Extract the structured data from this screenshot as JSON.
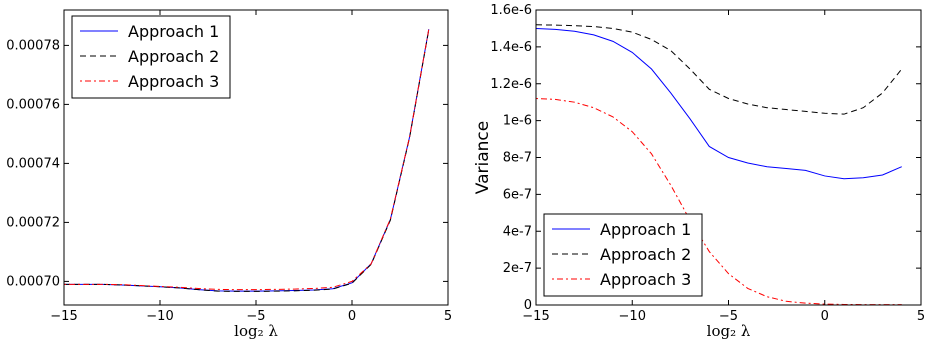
{
  "chart_data": [
    {
      "type": "line",
      "title": "",
      "xlabel": "log₂ λ",
      "ylabel": "",
      "xlim": [
        -15,
        5
      ],
      "ylim": [
        0.000692,
        0.000792
      ],
      "xticks": [
        "−15",
        "−10",
        "−5",
        "0",
        "5"
      ],
      "yticks": [
        "0.00070",
        "0.00072",
        "0.00074",
        "0.00076",
        "0.00078"
      ],
      "legend_position": "top-left",
      "x": [
        -15,
        -14,
        -13,
        -12,
        -11,
        -10,
        -9,
        -8,
        -7,
        -6,
        -5,
        -4,
        -3,
        -2,
        -1,
        0,
        1,
        2,
        3,
        4
      ],
      "series": [
        {
          "name": "Approach 1",
          "color": "#0000ff",
          "style": "solid",
          "values": [
            0.000699,
            0.000699,
            0.000699,
            0.0006988,
            0.0006985,
            0.0006982,
            0.0006978,
            0.0006972,
            0.0006968,
            0.0006967,
            0.0006967,
            0.0006968,
            0.0006969,
            0.0006971,
            0.0006975,
            0.0006995,
            0.000706,
            0.000721,
            0.000749,
            0.0007855
          ]
        },
        {
          "name": "Approach 2",
          "color": "#000000",
          "style": "dashed",
          "values": [
            0.000699,
            0.000699,
            0.000699,
            0.0006988,
            0.0006985,
            0.0006982,
            0.0006978,
            0.0006972,
            0.0006967,
            0.0006966,
            0.0006966,
            0.0006967,
            0.0006968,
            0.000697,
            0.0006974,
            0.0006994,
            0.0007058,
            0.0007208,
            0.0007488,
            0.0007853
          ]
        },
        {
          "name": "Approach 3",
          "color": "#ff0000",
          "style": "dashdot",
          "values": [
            0.000699,
            0.000699,
            0.000699,
            0.0006989,
            0.0006986,
            0.0006983,
            0.000698,
            0.0006976,
            0.0006973,
            0.0006972,
            0.0006972,
            0.0006973,
            0.0006974,
            0.0006976,
            0.000698,
            0.0007,
            0.000706,
            0.0007212,
            0.000749,
            0.0007855
          ]
        }
      ]
    },
    {
      "type": "line",
      "title": "",
      "xlabel": "log₂ λ",
      "ylabel": "Variance",
      "xlim": [
        -15,
        5
      ],
      "ylim": [
        0,
        1.6e-06
      ],
      "xticks": [
        "−15",
        "−10",
        "−5",
        "0",
        "5"
      ],
      "yticks": [
        "0",
        "2e-7",
        "4e-7",
        "6e-7",
        "8e-7",
        "1e-6",
        "1.2e-6",
        "1.4e-6",
        "1.6e-6"
      ],
      "legend_position": "bottom-left",
      "x": [
        -15,
        -14,
        -13,
        -12,
        -11,
        -10,
        -9,
        -8,
        -7,
        -6,
        -5,
        -4,
        -3,
        -2,
        -1,
        0,
        1,
        2,
        3,
        4
      ],
      "series": [
        {
          "name": "Approach 1",
          "color": "#0000ff",
          "style": "solid",
          "values": [
            1.5e-06,
            1.495e-06,
            1.485e-06,
            1.465e-06,
            1.43e-06,
            1.37e-06,
            1.28e-06,
            1.15e-06,
            1.01e-06,
            8.6e-07,
            8e-07,
            7.7e-07,
            7.5e-07,
            7.4e-07,
            7.3e-07,
            7e-07,
            6.85e-07,
            6.9e-07,
            7.05e-07,
            7.5e-07
          ]
        },
        {
          "name": "Approach 2",
          "color": "#000000",
          "style": "dashed",
          "values": [
            1.52e-06,
            1.518e-06,
            1.515e-06,
            1.51e-06,
            1.5e-06,
            1.48e-06,
            1.44e-06,
            1.38e-06,
            1.28e-06,
            1.17e-06,
            1.12e-06,
            1.09e-06,
            1.07e-06,
            1.06e-06,
            1.05e-06,
            1.04e-06,
            1.035e-06,
            1.07e-06,
            1.15e-06,
            1.28e-06
          ]
        },
        {
          "name": "Approach 3",
          "color": "#ff0000",
          "style": "dashdot",
          "values": [
            1.12e-06,
            1.115e-06,
            1.1e-06,
            1.07e-06,
            1.02e-06,
            9.4e-07,
            8.2e-07,
            6.5e-07,
            4.6e-07,
            2.9e-07,
            1.7e-07,
            9e-08,
            4.5e-08,
            2e-08,
            1e-08,
            5e-09,
            3e-09,
            2e-09,
            2e-09,
            2e-09
          ]
        }
      ]
    }
  ]
}
